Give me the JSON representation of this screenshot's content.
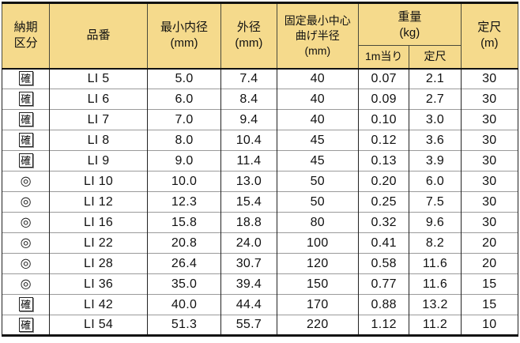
{
  "colors": {
    "header_bg": "#f5da8c",
    "outer_border": "#111111",
    "column_line": "#222222",
    "row_line": "#9a9a9a"
  },
  "table": {
    "headers": {
      "delivery": "納期\n区分",
      "part_no": "品番",
      "min_inner_dia": "最小内径\n(mm)",
      "outer_dia": "外径\n(mm)",
      "min_bend_radius": "固定最小中心\n曲げ半径\n(mm)",
      "weight_group": "重量\n(kg)",
      "weight_per_m": "1m当り",
      "weight_std": "定尺",
      "std_length": "定尺\n(m)"
    },
    "rows": [
      {
        "mark": "確",
        "mark_type": "kaku",
        "part": "LI 5",
        "id_min": "5.0",
        "od": "7.4",
        "bend": "40",
        "w1m": "0.07",
        "wstd": "2.1",
        "len": "30"
      },
      {
        "mark": "確",
        "mark_type": "kaku",
        "part": "LI 6",
        "id_min": "6.0",
        "od": "8.4",
        "bend": "40",
        "w1m": "0.09",
        "wstd": "2.7",
        "len": "30"
      },
      {
        "mark": "確",
        "mark_type": "kaku",
        "part": "LI 7",
        "id_min": "7.0",
        "od": "9.4",
        "bend": "40",
        "w1m": "0.10",
        "wstd": "3.0",
        "len": "30"
      },
      {
        "mark": "確",
        "mark_type": "kaku",
        "part": "LI 8",
        "id_min": "8.0",
        "od": "10.4",
        "bend": "45",
        "w1m": "0.12",
        "wstd": "3.6",
        "len": "30"
      },
      {
        "mark": "確",
        "mark_type": "kaku",
        "part": "LI 9",
        "id_min": "9.0",
        "od": "11.4",
        "bend": "45",
        "w1m": "0.13",
        "wstd": "3.9",
        "len": "30"
      },
      {
        "mark": "◎",
        "mark_type": "circle",
        "part": "LI 10",
        "id_min": "10.0",
        "od": "13.0",
        "bend": "50",
        "w1m": "0.20",
        "wstd": "6.0",
        "len": "30"
      },
      {
        "mark": "◎",
        "mark_type": "circle",
        "part": "LI 12",
        "id_min": "12.3",
        "od": "15.4",
        "bend": "50",
        "w1m": "0.25",
        "wstd": "7.5",
        "len": "30"
      },
      {
        "mark": "◎",
        "mark_type": "circle",
        "part": "LI 16",
        "id_min": "15.8",
        "od": "18.8",
        "bend": "80",
        "w1m": "0.32",
        "wstd": "9.6",
        "len": "30"
      },
      {
        "mark": "◎",
        "mark_type": "circle",
        "part": "LI 22",
        "id_min": "20.8",
        "od": "24.0",
        "bend": "100",
        "w1m": "0.41",
        "wstd": "8.2",
        "len": "20"
      },
      {
        "mark": "◎",
        "mark_type": "circle",
        "part": "LI 28",
        "id_min": "26.4",
        "od": "30.7",
        "bend": "120",
        "w1m": "0.58",
        "wstd": "11.6",
        "len": "20"
      },
      {
        "mark": "◎",
        "mark_type": "circle",
        "part": "LI 36",
        "id_min": "35.0",
        "od": "39.4",
        "bend": "150",
        "w1m": "0.77",
        "wstd": "11.6",
        "len": "15"
      },
      {
        "mark": "確",
        "mark_type": "kaku",
        "part": "LI 42",
        "id_min": "40.0",
        "od": "44.4",
        "bend": "170",
        "w1m": "0.88",
        "wstd": "13.2",
        "len": "15"
      },
      {
        "mark": "確",
        "mark_type": "kaku",
        "part": "LI 54",
        "id_min": "51.3",
        "od": "55.7",
        "bend": "220",
        "w1m": "1.12",
        "wstd": "11.2",
        "len": "10"
      }
    ]
  }
}
